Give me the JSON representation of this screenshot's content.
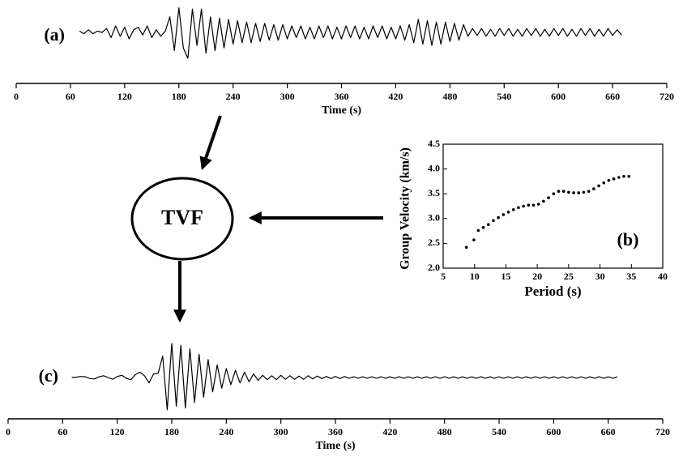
{
  "chart_data": [
    {
      "type": "line",
      "panel_label": "(a)",
      "xlabel": "Time (s)",
      "color": "#000000",
      "xlim": [
        0,
        720
      ],
      "xticks": [
        0,
        60,
        120,
        180,
        240,
        300,
        360,
        420,
        480,
        540,
        600,
        660,
        720
      ],
      "x": [
        70,
        75,
        80,
        85,
        90,
        95,
        100,
        105,
        110,
        115,
        120,
        125,
        130,
        135,
        140,
        145,
        150,
        155,
        160,
        165,
        170,
        175,
        180,
        185,
        190,
        195,
        200,
        205,
        210,
        215,
        220,
        225,
        230,
        235,
        240,
        245,
        250,
        255,
        260,
        265,
        270,
        275,
        280,
        285,
        290,
        295,
        300,
        305,
        310,
        315,
        320,
        325,
        330,
        335,
        340,
        345,
        350,
        355,
        360,
        365,
        370,
        375,
        380,
        385,
        390,
        395,
        400,
        405,
        410,
        415,
        420,
        425,
        430,
        435,
        440,
        445,
        450,
        455,
        460,
        465,
        470,
        475,
        480,
        485,
        490,
        495,
        500,
        505,
        510,
        515,
        520,
        525,
        530,
        535,
        540,
        545,
        550,
        555,
        560,
        565,
        570,
        575,
        580,
        585,
        590,
        595,
        600,
        605,
        610,
        615,
        620,
        625,
        630,
        635,
        640,
        645,
        650,
        655,
        660,
        665,
        670
      ],
      "values": [
        0.05,
        -0.05,
        0.1,
        -0.05,
        0.05,
        0,
        0.15,
        -0.2,
        0.25,
        -0.15,
        0.2,
        -0.25,
        0.1,
        0.2,
        -0.1,
        0.25,
        -0.2,
        0.1,
        -0.15,
        0.05,
        0.6,
        -0.7,
        0.95,
        -0.6,
        -1.0,
        0.9,
        -0.5,
        0.9,
        -0.8,
        0.6,
        -0.7,
        0.55,
        -0.6,
        0.5,
        -0.45,
        0.45,
        -0.4,
        0.4,
        -0.4,
        0.35,
        -0.35,
        0.35,
        -0.3,
        0.3,
        -0.3,
        0.3,
        -0.25,
        0.25,
        -0.2,
        0.25,
        -0.25,
        0.2,
        -0.25,
        0.25,
        -0.2,
        0.25,
        -0.25,
        0.2,
        -0.25,
        0.25,
        -0.2,
        0.25,
        -0.25,
        0.2,
        -0.25,
        0.25,
        -0.2,
        0.25,
        -0.25,
        0.2,
        -0.25,
        0.25,
        -0.3,
        0.3,
        -0.4,
        0.5,
        -0.45,
        0.45,
        -0.5,
        0.4,
        -0.45,
        0.4,
        -0.35,
        0.35,
        -0.3,
        0.3,
        -0.15,
        0.15,
        -0.12,
        0.15,
        -0.15,
        0.12,
        -0.15,
        0.15,
        -0.12,
        0.15,
        -0.15,
        0.12,
        -0.15,
        0.15,
        -0.12,
        0.15,
        -0.15,
        0.12,
        -0.15,
        0.15,
        -0.12,
        0.15,
        -0.15,
        0.12,
        -0.15,
        0.15,
        -0.12,
        0.15,
        -0.15,
        0.12,
        -0.15,
        0.15,
        -0.12,
        0.1,
        -0.1
      ]
    },
    {
      "type": "scatter",
      "panel_label": "(b)",
      "xlabel": "Period (s)",
      "ylabel": "Group Velocity (km/s)",
      "color": "#000000",
      "xlim": [
        5,
        40
      ],
      "xticks": [
        5,
        10,
        15,
        20,
        25,
        30,
        35,
        40
      ],
      "ylim": [
        2.0,
        4.5
      ],
      "yticks": [
        {
          "value": 2.0,
          "label": "2.0"
        },
        2.5,
        {
          "value": 3.0,
          "label": "3.0"
        },
        3.5,
        {
          "value": 4.0,
          "label": "4.0"
        },
        4.5
      ],
      "x": [
        8.7,
        9.9,
        10.6,
        11.4,
        12.2,
        13.0,
        13.8,
        14.6,
        15.4,
        16.2,
        17.0,
        17.8,
        18.6,
        19.4,
        20.2,
        21.0,
        21.8,
        22.6,
        23.4,
        24.2,
        25.0,
        25.8,
        26.6,
        27.4,
        28.2,
        29.0,
        29.8,
        30.6,
        31.4,
        32.2,
        33.0,
        33.8,
        34.6
      ],
      "values": [
        2.42,
        2.57,
        2.76,
        2.82,
        2.88,
        2.96,
        3.02,
        3.08,
        3.13,
        3.18,
        3.22,
        3.25,
        3.27,
        3.27,
        3.29,
        3.35,
        3.42,
        3.5,
        3.55,
        3.55,
        3.53,
        3.52,
        3.52,
        3.53,
        3.55,
        3.6,
        3.66,
        3.72,
        3.77,
        3.8,
        3.83,
        3.85,
        3.85
      ]
    },
    {
      "type": "line",
      "panel_label": "(c)",
      "xlabel": "Time (s)",
      "color": "#000000",
      "xlim": [
        0,
        720
      ],
      "xticks": [
        0,
        60,
        120,
        180,
        240,
        300,
        360,
        420,
        480,
        540,
        600,
        660,
        720
      ],
      "x": [
        70,
        75,
        80,
        85,
        90,
        95,
        100,
        105,
        110,
        115,
        120,
        125,
        130,
        135,
        140,
        145,
        150,
        155,
        160,
        165,
        170,
        175,
        180,
        185,
        190,
        195,
        200,
        205,
        210,
        215,
        220,
        225,
        230,
        235,
        240,
        245,
        250,
        255,
        260,
        265,
        270,
        275,
        280,
        285,
        290,
        295,
        300,
        305,
        310,
        315,
        320,
        325,
        330,
        335,
        340,
        345,
        350,
        355,
        360,
        365,
        370,
        375,
        380,
        385,
        390,
        395,
        400,
        405,
        410,
        415,
        420,
        425,
        430,
        435,
        440,
        445,
        450,
        455,
        460,
        465,
        470,
        475,
        480,
        485,
        490,
        495,
        500,
        505,
        510,
        515,
        520,
        525,
        530,
        535,
        540,
        545,
        550,
        555,
        560,
        565,
        570,
        575,
        580,
        585,
        590,
        595,
        600,
        605,
        610,
        615,
        620,
        625,
        630,
        635,
        640,
        645,
        650,
        655,
        660,
        665,
        670
      ],
      "values": [
        0,
        0.01,
        0.03,
        0.02,
        -0.03,
        -0.04,
        0.02,
        0.05,
        0,
        -0.05,
        0.03,
        0.06,
        -0.02,
        -0.06,
        0.08,
        0.15,
        0.05,
        -0.15,
        0.1,
        0.12,
        0.6,
        -0.9,
        0.95,
        -0.8,
        0.9,
        -0.85,
        0.8,
        -0.7,
        0.65,
        -0.55,
        0.5,
        -0.4,
        0.35,
        -0.3,
        0.25,
        -0.2,
        0.2,
        -0.15,
        0.15,
        -0.12,
        0.1,
        -0.08,
        0.06,
        -0.06,
        0.05,
        -0.06,
        0.06,
        -0.05,
        0.05,
        -0.05,
        0.04,
        -0.05,
        0.05,
        -0.04,
        0.04,
        -0.03,
        0.03,
        -0.03,
        0.03,
        -0.03,
        0.03,
        -0.02,
        0.02,
        -0.02,
        0.02,
        -0.02,
        0.02,
        -0.02,
        0.02,
        -0.02,
        0.02,
        -0.02,
        0.02,
        -0.02,
        0.02,
        -0.02,
        0.02,
        -0.02,
        0.02,
        -0.02,
        0.02,
        -0.02,
        0.02,
        -0.02,
        0.02,
        -0.02,
        0.02,
        -0.02,
        0.02,
        -0.02,
        0.02,
        -0.02,
        0.02,
        -0.02,
        0.02,
        -0.02,
        0.02,
        -0.02,
        0.02,
        -0.02,
        0.02,
        -0.02,
        0.02,
        -0.02,
        0.02,
        -0.02,
        0.02,
        -0.02,
        0.02,
        -0.02,
        0.02,
        -0.02,
        0.02,
        -0.02,
        0.02,
        -0.02,
        0.02,
        -0.02,
        0.02,
        -0.02,
        0.02
      ]
    }
  ],
  "diagram": {
    "label": "TVF"
  }
}
